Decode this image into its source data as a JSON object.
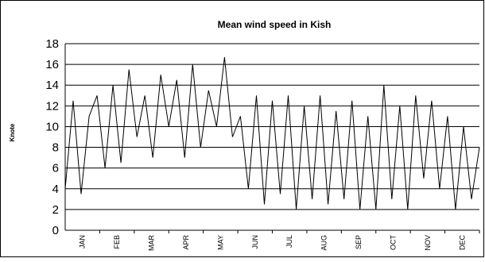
{
  "chart_data": {
    "type": "line",
    "title": "Mean wind speed in Kish",
    "xlabel": "",
    "ylabel": "Knote",
    "ylim": [
      0,
      18
    ],
    "yticks": [
      "0",
      "2",
      "4",
      "6",
      "8",
      "10",
      "12",
      "14",
      "16",
      "18"
    ],
    "grid": "horizontal",
    "legend": "none",
    "categories": [
      "JAN",
      "FEB",
      "MAR",
      "APR",
      "MAY",
      "JUN",
      "JUL",
      "AUG",
      "SEP",
      "OCT",
      "NOV",
      "DEC"
    ],
    "series": [
      {
        "color": "#000000",
        "x_unit": "day of year",
        "x": [
          1,
          8,
          15,
          22,
          29,
          36,
          43,
          50,
          57,
          64,
          71,
          78,
          85,
          92,
          99,
          106,
          113,
          120,
          127,
          134,
          141,
          148,
          155,
          162,
          169,
          176,
          183,
          190,
          197,
          204,
          211,
          218,
          225,
          232,
          239,
          246,
          253,
          260,
          267,
          274,
          281,
          288,
          295,
          302,
          309,
          316,
          323,
          330,
          337,
          344,
          351,
          358,
          365
        ],
        "values": [
          4,
          12.5,
          3.5,
          11,
          13,
          6,
          14,
          6.5,
          15.5,
          9,
          13,
          7,
          15,
          10,
          14.5,
          7,
          16,
          8,
          13.5,
          10,
          16.7,
          9,
          11,
          4,
          13,
          2.5,
          12.5,
          3.5,
          13,
          2,
          12,
          3,
          13,
          2.5,
          11.5,
          3,
          12.5,
          2,
          11,
          2,
          14,
          3,
          12,
          2,
          13,
          5,
          12.5,
          4,
          11,
          2,
          10,
          3,
          8
        ]
      }
    ]
  }
}
